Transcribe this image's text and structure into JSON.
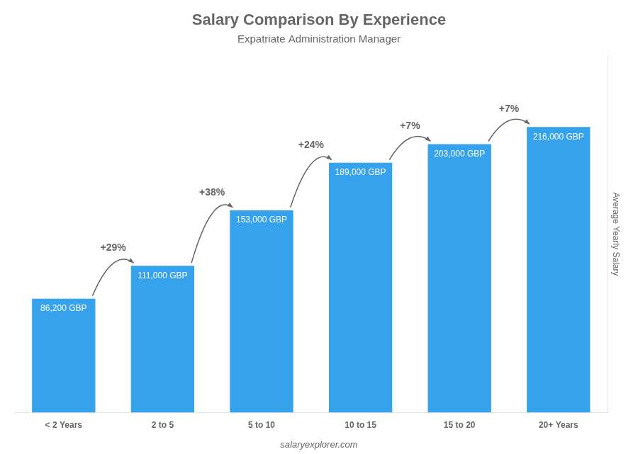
{
  "chart_data": {
    "type": "bar",
    "title": "Salary Comparison By Experience",
    "subtitle": "Expatriate Administration Manager",
    "ylabel": "Average Yearly Salary",
    "watermark": "salaryexplorer.com",
    "categories": [
      "< 2 Years",
      "2 to 5",
      "5 to 10",
      "10 to 15",
      "15 to 20",
      "20+ Years"
    ],
    "values": [
      86200,
      111000,
      153000,
      189000,
      203000,
      216000
    ],
    "value_labels": [
      "86,200 GBP",
      "111,000 GBP",
      "153,000 GBP",
      "189,000 GBP",
      "203,000 GBP",
      "216,000 GBP"
    ],
    "data_labels": true,
    "annotations": [
      "+29%",
      "+38%",
      "+24%",
      "+7%",
      "+7%"
    ],
    "color": "#36a2eb",
    "ylim": [
      0,
      270000
    ],
    "tick_labels": "x",
    "grid": false
  }
}
